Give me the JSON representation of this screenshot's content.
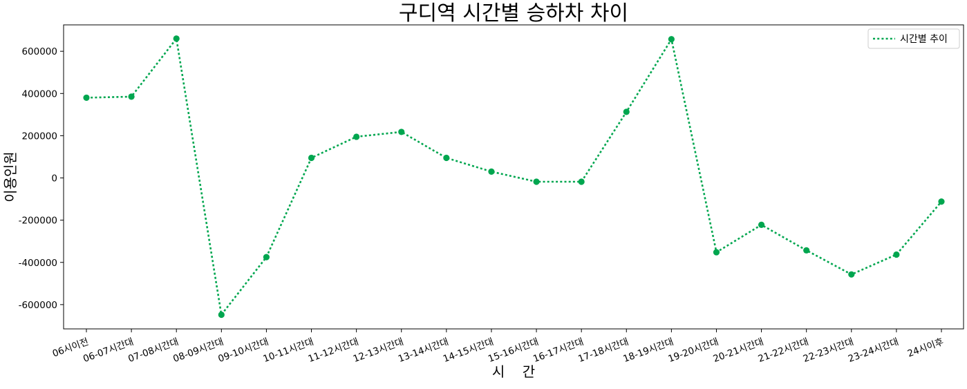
{
  "chart_data": {
    "type": "line",
    "title": "구디역 시간별 승하차 차이",
    "xlabel": "시    간",
    "ylabel": "이용인원",
    "categories": [
      "06시이전",
      "06-07시간대",
      "07-08시간대",
      "08-09시간대",
      "09-10시간대",
      "10-11시간대",
      "11-12시간대",
      "12-13시간대",
      "13-14시간대",
      "14-15시간대",
      "15-16시간대",
      "16-17시간대",
      "17-18시간대",
      "18-19시간대",
      "19-20시간대",
      "20-21시간대",
      "21-22시간대",
      "22-23시간대",
      "23-24시간대",
      "24시이후"
    ],
    "series": [
      {
        "name": "시간별 추이",
        "color": "#00a64f",
        "line_style": "dotted",
        "marker": "circle",
        "values": [
          380000,
          385000,
          660000,
          -648000,
          -375000,
          95000,
          195000,
          218000,
          95000,
          30000,
          -18000,
          -18000,
          313000,
          657000,
          -352000,
          -222000,
          -343000,
          -457000,
          -363000,
          -112000
        ]
      }
    ],
    "yticks": [
      600000,
      400000,
      200000,
      0,
      -200000,
      -400000,
      -600000
    ],
    "ylim": [
      -715000,
      725000
    ],
    "grid": false,
    "legend": "top-right"
  }
}
